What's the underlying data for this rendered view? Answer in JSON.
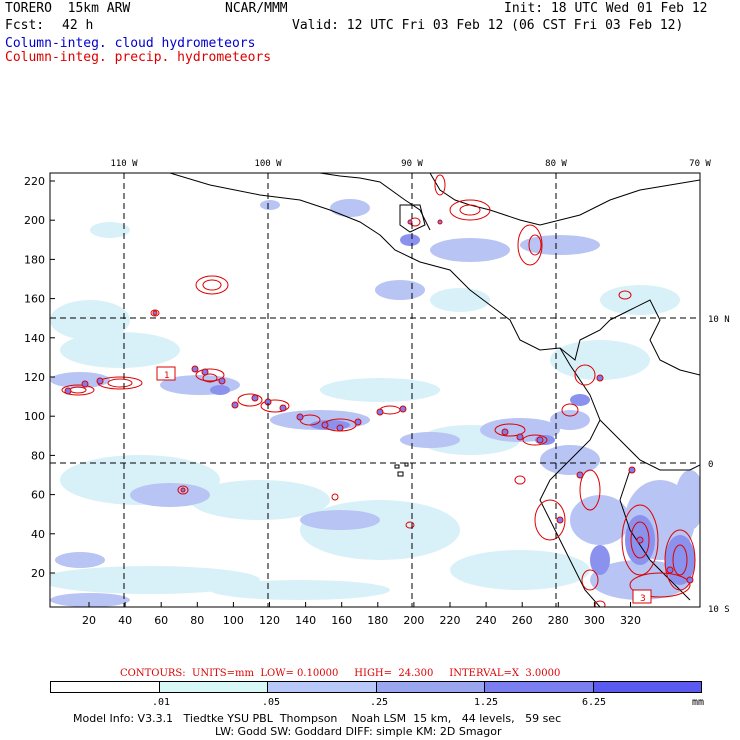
{
  "header": {
    "model": "TORERO  15km ARW",
    "center": "NCAR/MMM",
    "init": "Init: 18 UTC Wed 01 Feb 12",
    "fcst_label": "Fcst:",
    "fcst_value": "42 h",
    "valid": "Valid: 12 UTC Fri 03 Feb 12 (06 CST Fri 03 Feb 12)",
    "field1": "Column-integ. cloud hydrometeors",
    "field2": "Column-integ. precip. hydrometeors"
  },
  "colors": {
    "cloud": "#0000cc",
    "precip": "#dd0000",
    "shade": [
      "#ffffff",
      "#d8f8f8",
      "#b8c8f8",
      "#9aa6f0",
      "#7a7ef0",
      "#5a5af0",
      "#3030ee"
    ]
  },
  "map": {
    "lon_labels": [
      "110 W",
      "100 W",
      "90 W",
      "80 W",
      "70 W"
    ],
    "lat_labels": [
      "10 N",
      "0",
      "10 S"
    ],
    "y_ticks": [
      "220",
      "200",
      "180",
      "160",
      "140",
      "120",
      "100",
      "80",
      "60",
      "40",
      "20"
    ],
    "x_ticks": [
      "20",
      "40",
      "60",
      "80",
      "100",
      "120",
      "140",
      "160",
      "180",
      "200",
      "220",
      "240",
      "260",
      "280",
      "300",
      "320"
    ],
    "contour_labels": [
      "1",
      "1",
      "3"
    ]
  },
  "contours": {
    "text": "CONTOURS:  UNITS=mm  LOW= 0.10000     HIGH=  24.300     INTERVAL=X  3.0000"
  },
  "colorbar": {
    "labels": [
      ".01",
      ".05",
      ".25",
      "1.25",
      "6.25"
    ],
    "units": "mm"
  },
  "footer": {
    "line1": "Model Info: V3.3.1   Tiedtke YSU PBL  Thompson    Noah LSM  15 km,   44 levels,   59 sec",
    "line2": "LW: Godd SW: Goddard DIFF: simple KM: 2D Smagor"
  }
}
